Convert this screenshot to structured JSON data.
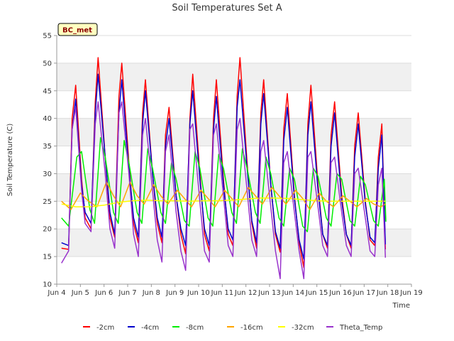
{
  "chart_data": {
    "type": "line",
    "title": "Soil Temperatures Set A",
    "xlabel": "Time",
    "ylabel": "Soil Temperature (C)",
    "badge": "BC_met",
    "xlim": [
      4.0,
      19.0
    ],
    "ylim": [
      10,
      55
    ],
    "yticks": [
      10,
      15,
      20,
      25,
      30,
      35,
      40,
      45,
      50,
      55
    ],
    "xticks": [
      {
        "value": 4,
        "label": "Jun 4"
      },
      {
        "value": 5,
        "label": "Jun 5"
      },
      {
        "value": 6,
        "label": "Jun 6"
      },
      {
        "value": 7,
        "label": "Jun 7"
      },
      {
        "value": 8,
        "label": "Jun 8"
      },
      {
        "value": 9,
        "label": "Jun 9"
      },
      {
        "value": 10,
        "label": "Jun 10"
      },
      {
        "value": 11,
        "label": "Jun 11"
      },
      {
        "value": 12,
        "label": "Jun 12"
      },
      {
        "value": 13,
        "label": "Jun 13"
      },
      {
        "value": 14,
        "label": "Jun 14"
      },
      {
        "value": 15,
        "label": "Jun 15"
      },
      {
        "value": 16,
        "label": "Jun 16"
      },
      {
        "value": 17,
        "label": "Jun 17"
      },
      {
        "value": 18,
        "label": "Jun 18"
      },
      {
        "value": 19,
        "label": "Jun 19"
      }
    ],
    "grid": true,
    "legend_position": "bottom",
    "series": [
      {
        "name": "-2cm",
        "color": "#ff0000",
        "x": [
          4.2,
          4.5,
          4.65,
          4.8,
          5.05,
          5.2,
          5.45,
          5.63,
          5.75,
          6.05,
          6.25,
          6.45,
          6.63,
          6.75,
          7.05,
          7.25,
          7.45,
          7.63,
          7.75,
          8.05,
          8.25,
          8.45,
          8.6,
          8.75,
          9.05,
          9.25,
          9.45,
          9.63,
          9.75,
          10.05,
          10.25,
          10.45,
          10.63,
          10.75,
          11.05,
          11.25,
          11.45,
          11.63,
          11.75,
          12.05,
          12.25,
          12.45,
          12.63,
          12.75,
          13.05,
          13.25,
          13.45,
          13.6,
          13.75,
          14.05,
          14.25,
          14.45,
          14.62,
          14.75,
          15.05,
          15.25,
          15.45,
          15.6,
          15.75,
          16.05,
          16.25,
          16.45,
          16.6,
          16.75,
          17.05,
          17.25,
          17.45,
          17.6,
          17.75,
          17.9
        ],
        "y": [
          16.5,
          16.3,
          40,
          46,
          29,
          22,
          20,
          43,
          51,
          33,
          22,
          18.5,
          44,
          50,
          32,
          21,
          17.5,
          41,
          47,
          30,
          21,
          17.5,
          37,
          42,
          26,
          19,
          15.5,
          40,
          48,
          30,
          19,
          16,
          40,
          47,
          29,
          19,
          17,
          44,
          51,
          32,
          21,
          16.5,
          41,
          47,
          28,
          19,
          15.8,
          38,
          44.5,
          26,
          17.5,
          13,
          39,
          46,
          28,
          19,
          16.5,
          37,
          43,
          26,
          19,
          16.5,
          35,
          41,
          25,
          18,
          17,
          33,
          39,
          16.3
        ]
      },
      {
        "name": "-4cm",
        "color": "#0000cc",
        "x": [
          4.2,
          4.5,
          4.65,
          4.8,
          5.05,
          5.2,
          5.45,
          5.63,
          5.75,
          6.05,
          6.25,
          6.45,
          6.63,
          6.75,
          7.05,
          7.25,
          7.45,
          7.63,
          7.75,
          8.05,
          8.25,
          8.45,
          8.6,
          8.75,
          9.05,
          9.25,
          9.45,
          9.63,
          9.75,
          10.05,
          10.25,
          10.45,
          10.63,
          10.75,
          11.05,
          11.25,
          11.45,
          11.63,
          11.75,
          12.05,
          12.25,
          12.45,
          12.63,
          12.75,
          13.05,
          13.25,
          13.45,
          13.6,
          13.75,
          14.05,
          14.25,
          14.45,
          14.62,
          14.75,
          15.05,
          15.25,
          15.45,
          15.6,
          15.75,
          16.05,
          16.25,
          16.45,
          16.6,
          16.75,
          17.05,
          17.25,
          17.45,
          17.6,
          17.75,
          17.9
        ],
        "y": [
          17.5,
          17,
          38,
          43.5,
          28,
          23,
          21,
          41,
          48,
          33,
          23,
          19,
          41,
          47,
          31,
          22,
          18.5,
          39,
          45,
          30,
          22,
          18.5,
          35,
          40,
          26,
          20,
          17,
          39,
          45,
          29,
          20,
          17,
          38,
          44,
          28,
          20,
          18,
          42,
          47,
          31,
          21.5,
          17.5,
          39,
          44.5,
          28,
          19.5,
          16.5,
          36,
          42,
          25.5,
          18,
          14.5,
          37,
          43,
          27,
          19,
          17,
          35,
          41,
          25,
          19,
          17,
          33,
          39,
          24.5,
          18.5,
          17.5,
          31,
          37,
          17.2
        ]
      },
      {
        "name": "-8cm",
        "color": "#00ee00",
        "x": [
          4.2,
          4.5,
          4.85,
          5.05,
          5.4,
          5.6,
          5.85,
          6.05,
          6.4,
          6.6,
          6.85,
          7.05,
          7.4,
          7.6,
          7.85,
          8.05,
          8.4,
          8.6,
          8.85,
          9.05,
          9.4,
          9.6,
          9.85,
          10.05,
          10.4,
          10.6,
          10.85,
          11.05,
          11.4,
          11.6,
          11.85,
          12.05,
          12.4,
          12.6,
          12.85,
          13.05,
          13.4,
          13.6,
          13.85,
          14.05,
          14.4,
          14.6,
          14.85,
          15.05,
          15.4,
          15.6,
          15.85,
          16.05,
          16.4,
          16.6,
          16.85,
          17.05,
          17.4,
          17.6,
          17.85,
          17.92
        ],
        "y": [
          22,
          20.5,
          33,
          34,
          23.5,
          21,
          36.5,
          33,
          23,
          21,
          36,
          32,
          23,
          21,
          34.5,
          31,
          23,
          21,
          32,
          29,
          21.5,
          20.5,
          34,
          31,
          22,
          20.5,
          33.5,
          31,
          23,
          21,
          34.5,
          31,
          23,
          21,
          33,
          30,
          22,
          20.5,
          31,
          29,
          20.5,
          19.5,
          31,
          29.5,
          22,
          20.5,
          30,
          29,
          21.5,
          20.5,
          29.5,
          28,
          21.5,
          20.5,
          29,
          21.3
        ]
      },
      {
        "name": "-16cm",
        "color": "#ffa500",
        "x": [
          4.2,
          4.6,
          5.0,
          5.35,
          5.7,
          6.1,
          6.4,
          6.7,
          7.1,
          7.4,
          7.7,
          8.1,
          8.4,
          8.7,
          9.1,
          9.4,
          9.7,
          10.1,
          10.4,
          10.7,
          11.1,
          11.4,
          11.7,
          12.1,
          12.4,
          12.7,
          13.1,
          13.4,
          13.7,
          14.1,
          14.4,
          14.7,
          15.1,
          15.4,
          15.7,
          16.1,
          16.4,
          16.7,
          17.1,
          17.4,
          17.7,
          17.9
        ],
        "y": [
          25,
          23.5,
          26.5,
          25,
          24,
          28.5,
          26,
          24,
          28.5,
          26,
          24.5,
          28,
          26,
          24.5,
          27,
          25.5,
          24,
          27,
          25.5,
          24,
          27,
          25.5,
          24,
          27.5,
          26,
          24.5,
          27.5,
          26,
          24.5,
          27,
          25.5,
          23.5,
          26.5,
          25,
          24,
          26,
          25,
          24,
          25.5,
          24.5,
          24,
          24.5
        ]
      },
      {
        "name": "-32cm",
        "color": "#ffff00",
        "x": [
          4.2,
          4.8,
          5.4,
          6.0,
          6.6,
          7.2,
          7.8,
          8.4,
          9.0,
          9.6,
          10.2,
          10.8,
          11.4,
          12.0,
          12.6,
          13.2,
          13.8,
          14.4,
          15.0,
          15.6,
          16.2,
          16.8,
          17.4,
          17.9
        ],
        "y": [
          24.5,
          24,
          24,
          24.3,
          24.8,
          25.1,
          25.2,
          25.1,
          25.1,
          25,
          25.1,
          25.1,
          25.2,
          25.4,
          25.6,
          25.6,
          25.5,
          25.3,
          25.1,
          25,
          25,
          25,
          25,
          25
        ]
      },
      {
        "name": "Theta_Temp",
        "color": "#9933cc",
        "x": [
          4.2,
          4.5,
          4.65,
          4.8,
          5.05,
          5.2,
          5.45,
          5.63,
          5.75,
          6.05,
          6.25,
          6.45,
          6.63,
          6.75,
          7.05,
          7.25,
          7.45,
          7.63,
          7.75,
          8.05,
          8.25,
          8.45,
          8.6,
          8.75,
          9.05,
          9.25,
          9.45,
          9.63,
          9.75,
          10.05,
          10.25,
          10.45,
          10.63,
          10.75,
          11.05,
          11.25,
          11.45,
          11.63,
          11.75,
          12.05,
          12.25,
          12.45,
          12.63,
          12.75,
          13.05,
          13.25,
          13.45,
          13.6,
          13.75,
          14.05,
          14.25,
          14.45,
          14.62,
          14.75,
          15.05,
          15.25,
          15.45,
          15.6,
          15.75,
          16.05,
          16.25,
          16.45,
          16.6,
          16.75,
          17.05,
          17.25,
          17.45,
          17.6,
          17.75,
          17.9
        ],
        "y": [
          13.8,
          16,
          38,
          42,
          27,
          21,
          19.5,
          39,
          43,
          30,
          20,
          16.5,
          41,
          43,
          30,
          19,
          15,
          37,
          40,
          27,
          18,
          14,
          34,
          37,
          23,
          16,
          12.5,
          38,
          39,
          25,
          16,
          14,
          37,
          39,
          26,
          17,
          15,
          38,
          40,
          27,
          18,
          15,
          34,
          36,
          24,
          16,
          11,
          32,
          34,
          23,
          16,
          11,
          33,
          34,
          24,
          17,
          15,
          32,
          33,
          23,
          17,
          15,
          30,
          31,
          22,
          16,
          15,
          28,
          31,
          14.8
        ]
      }
    ]
  }
}
